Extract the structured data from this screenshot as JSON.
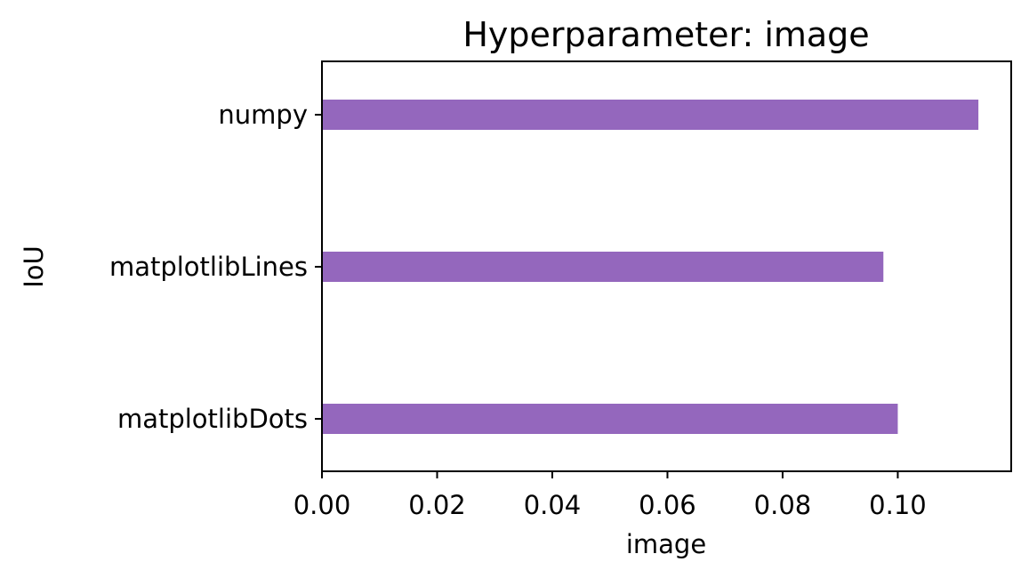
{
  "chart_data": {
    "type": "bar",
    "orientation": "horizontal",
    "title": "Hyperparameter: image",
    "xlabel": "image",
    "ylabel": "IoU",
    "categories": [
      "numpy",
      "matplotlibLines",
      "matplotlibDots"
    ],
    "values": [
      0.114,
      0.0975,
      0.1
    ],
    "xlim": [
      0,
      0.1197
    ],
    "xticks": [
      "0.00",
      "0.02",
      "0.04",
      "0.06",
      "0.08",
      "0.10"
    ],
    "grid": false,
    "bar_color": "#9467bd"
  }
}
